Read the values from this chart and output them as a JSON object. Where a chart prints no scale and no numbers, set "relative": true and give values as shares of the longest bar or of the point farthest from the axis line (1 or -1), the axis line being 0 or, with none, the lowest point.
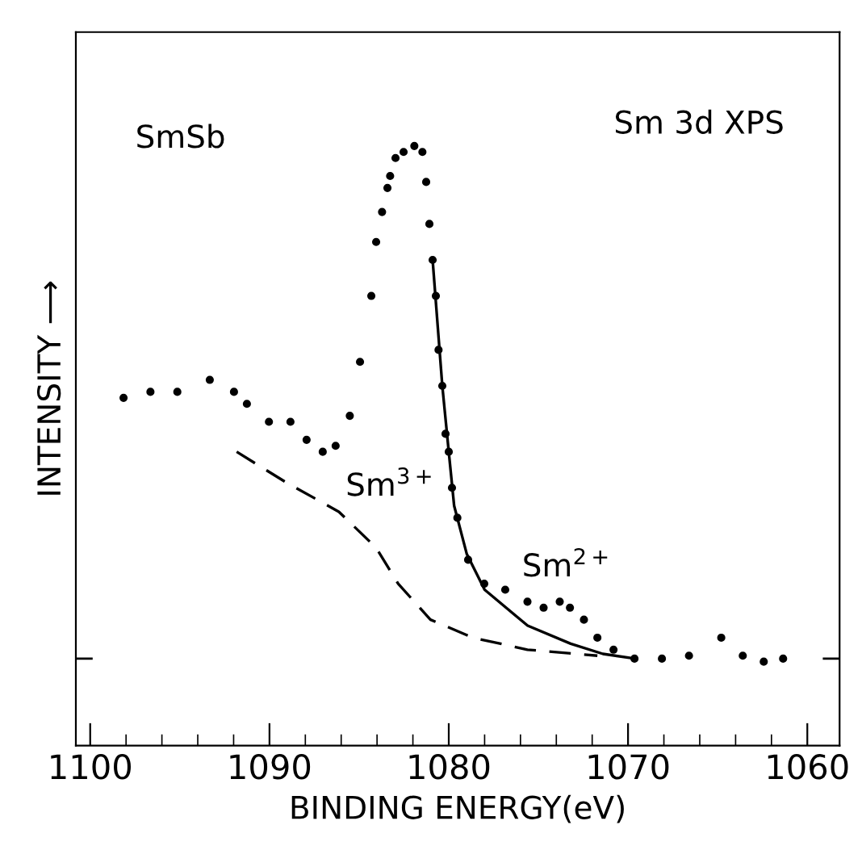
{
  "chart_data": {
    "type": "scatter",
    "relative": true,
    "xlabel": "BINDING ENERGY(eV)",
    "ylabel": "INTENSITY ⟶",
    "xlim": [
      1100.8,
      1058.2
    ],
    "xticks": [
      1100,
      1090,
      1080,
      1070,
      1060
    ],
    "tick_labels": "x",
    "grid": false,
    "legend": false,
    "annotations": [
      "SmSb",
      "Sm 3d XPS",
      "Sm$^{3+}$",
      "Sm$^{2+}$"
    ],
    "ref_lines": [
      {
        "axis": "y",
        "value": 0.145,
        "color": "#000000"
      }
    ],
    "series": [
      {
        "color": "#000000",
        "marker": "circle",
        "x": [
          1098.14,
          1096.64,
          1095.14,
          1093.33,
          1091.98,
          1091.26,
          1090.03,
          1088.83,
          1087.93,
          1087.03,
          1086.31,
          1085.52,
          1084.95,
          1084.32,
          1084.05,
          1083.72,
          1083.42,
          1083.27,
          1082.97,
          1082.52,
          1081.92,
          1081.47,
          1081.26,
          1081.08,
          1080.9,
          1080.72,
          1080.57,
          1080.36,
          1080.18,
          1080.0,
          1079.82,
          1079.52,
          1078.92,
          1078.02,
          1076.85,
          1075.61,
          1074.71,
          1073.81,
          1073.24,
          1072.46,
          1071.71,
          1070.81,
          1069.64,
          1068.11,
          1066.6,
          1064.8,
          1063.6,
          1062.43,
          1061.35
        ],
        "values": [
          0.58,
          0.59,
          0.59,
          0.61,
          0.59,
          0.57,
          0.54,
          0.54,
          0.51,
          0.49,
          0.5,
          0.55,
          0.64,
          0.75,
          0.84,
          0.89,
          0.93,
          0.95,
          0.98,
          0.99,
          1.0,
          0.99,
          0.94,
          0.87,
          0.81,
          0.75,
          0.66,
          0.6,
          0.52,
          0.49,
          0.43,
          0.38,
          0.31,
          0.27,
          0.26,
          0.24,
          0.23,
          0.24,
          0.23,
          0.21,
          0.18,
          0.16,
          0.145,
          0.145,
          0.15,
          0.18,
          0.15,
          0.14,
          0.145
        ]
      },
      {
        "type": "line",
        "color": "#000000",
        "line_style": "solid",
        "x": [
          1080.9,
          1080.36,
          1080.0,
          1079.7,
          1079.0,
          1078.0,
          1075.6,
          1073.2,
          1071.4,
          1069.6
        ],
        "values": [
          0.81,
          0.6,
          0.49,
          0.4,
          0.32,
          0.26,
          0.2,
          0.17,
          0.153,
          0.145
        ]
      },
      {
        "type": "line",
        "color": "#000000",
        "line_style": "dashed",
        "x": [
          1091.83,
          1089.13,
          1086.13,
          1084.05,
          1082.82,
          1081.02,
          1078.65,
          1075.61,
          1071.71
        ],
        "values": [
          0.49,
          0.44,
          0.39,
          0.33,
          0.27,
          0.21,
          0.18,
          0.16,
          0.15
        ]
      }
    ]
  }
}
